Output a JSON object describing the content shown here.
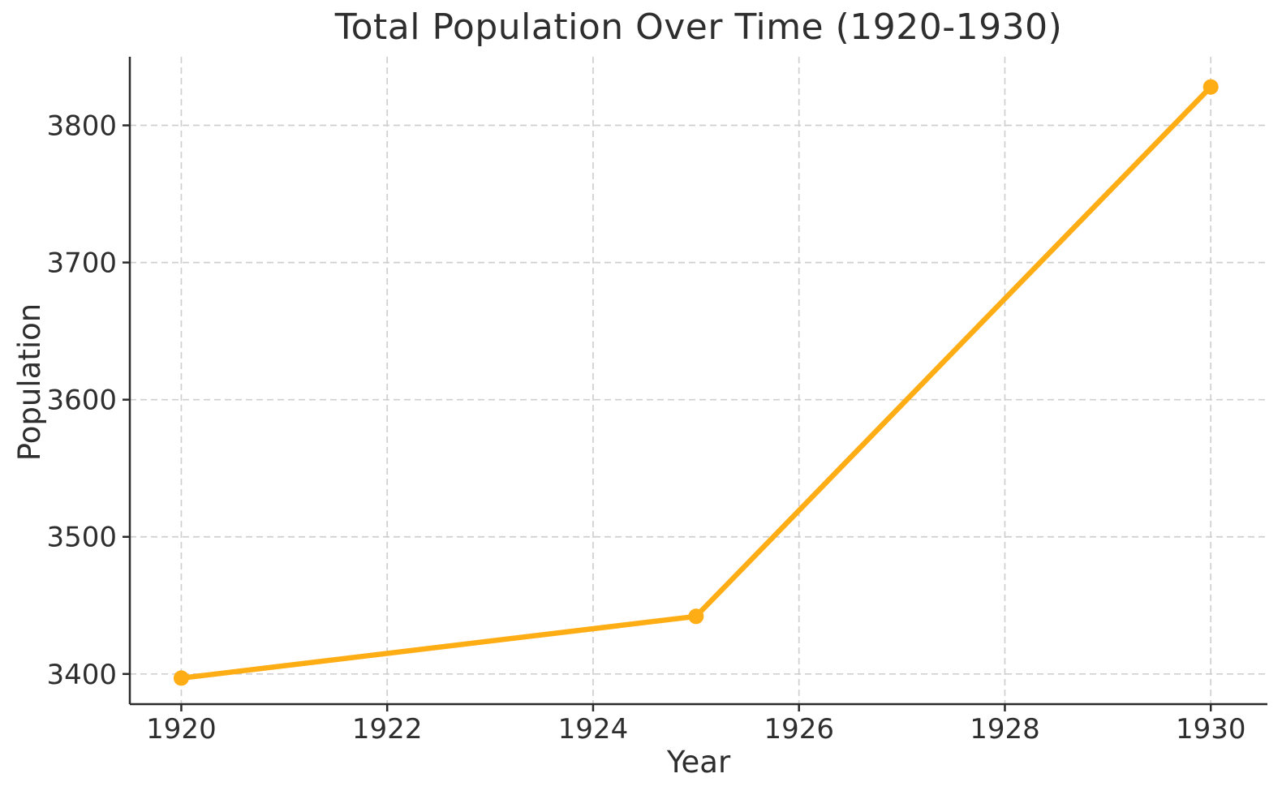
{
  "chart_data": {
    "type": "line",
    "title": "Total Population Over Time (1920-1930)",
    "xlabel": "Year",
    "ylabel": "Population",
    "x": [
      1920,
      1925,
      1930
    ],
    "series": [
      {
        "name": "Total Population",
        "values": [
          3397,
          3442,
          3828
        ]
      }
    ],
    "xticks": [
      1920,
      1922,
      1924,
      1926,
      1928,
      1930
    ],
    "yticks": [
      3400,
      3500,
      3600,
      3700,
      3800
    ],
    "xlim": [
      1919.5,
      1930.55
    ],
    "ylim": [
      3378,
      3850
    ],
    "grid": true,
    "grid_style": "dashed",
    "legend_position": "none",
    "line_color": "#FFAD14",
    "marker": "circle",
    "marker_color": "#FFAD14",
    "background_color": "#FFFFFF",
    "text_color": "#2E2E2E",
    "grid_color": "#CFCFCF",
    "spine_color": "#2A2A2A"
  }
}
